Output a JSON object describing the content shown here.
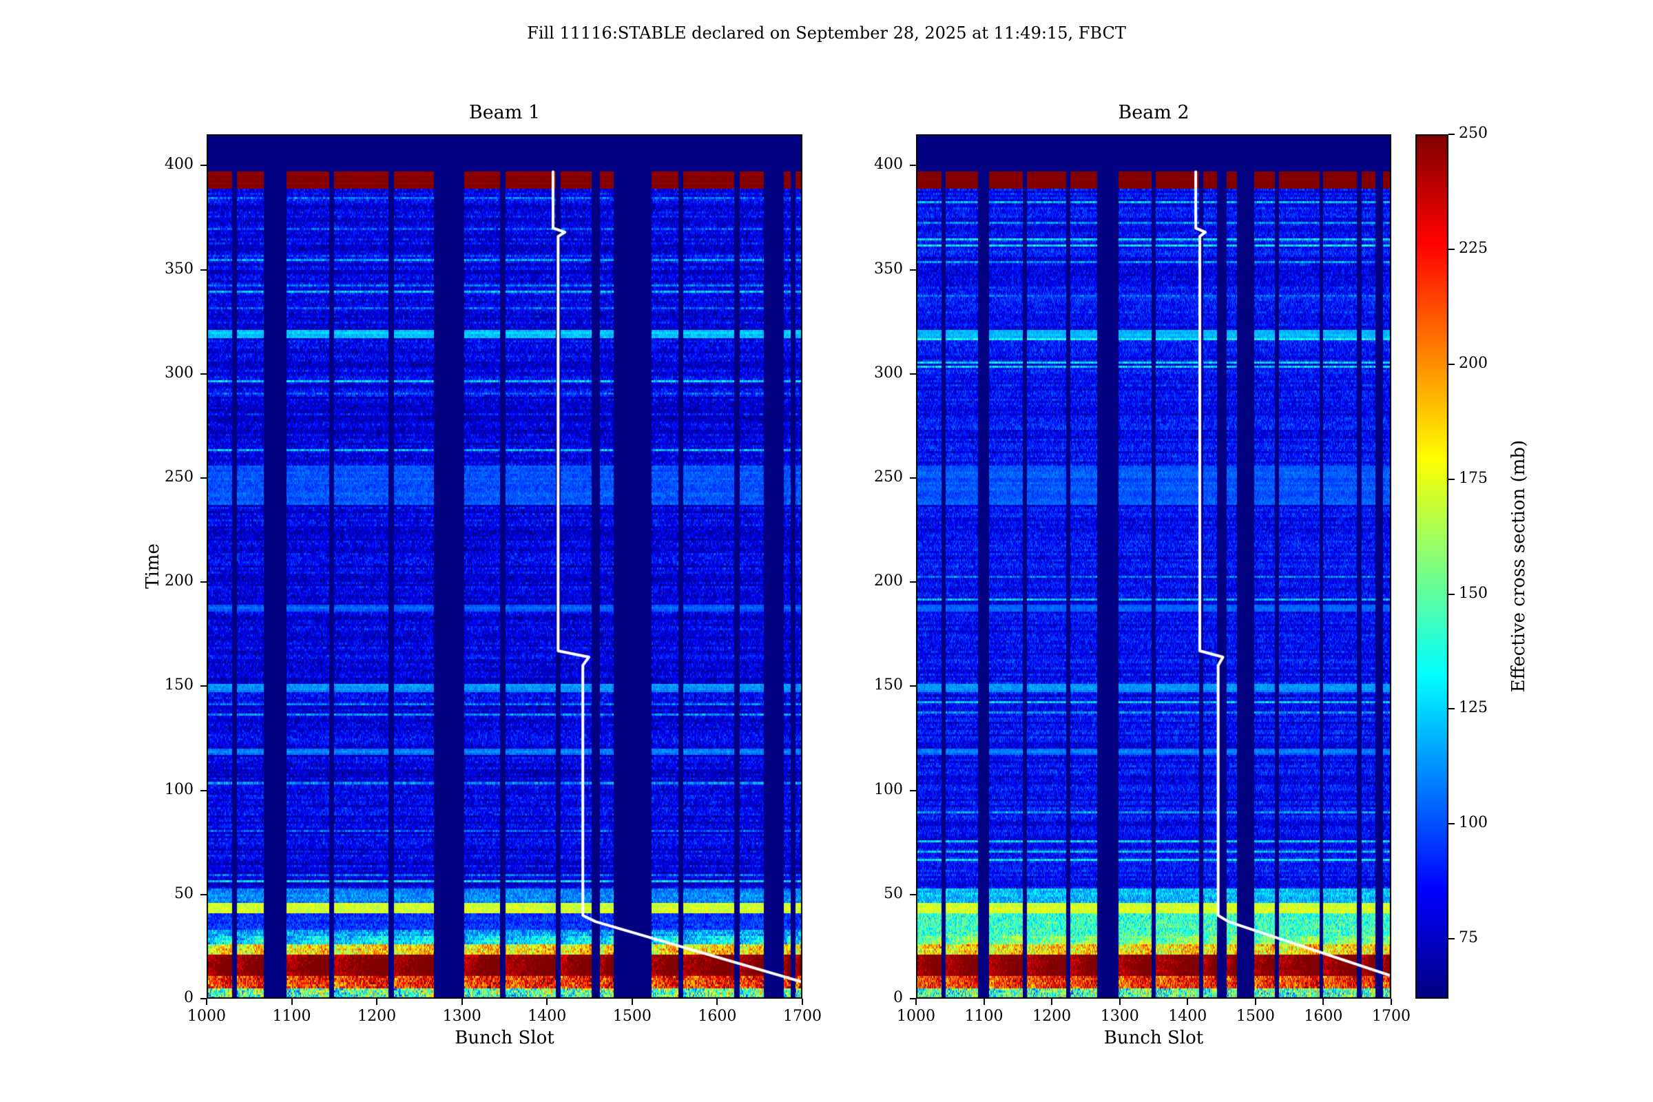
{
  "figure": {
    "suptitle": "Fill 11116:STABLE declared on September 28, 2025 at 11:49:15, FBCT",
    "background": "#ffffff"
  },
  "colorbar": {
    "label": "Effective cross section (mb)",
    "vmin": 62,
    "vmax": 250,
    "ticks": [
      75,
      100,
      125,
      150,
      175,
      200,
      225,
      250
    ],
    "colormap": "jet",
    "min_color": "#000080",
    "max_color": "#800000"
  },
  "heatmap_model": {
    "baseline": 80,
    "cell_noise": 16,
    "row_noise": 16,
    "row_streak_probability": 0.07,
    "row_streak_boost": 30,
    "train_sawtooth_boost": 26,
    "sawtooth_below_time": 30,
    "data_top_time": 397,
    "bands": [
      {
        "t0": 0,
        "t1": 5,
        "value": 135,
        "jitter": 85
      },
      {
        "t0": 5,
        "t1": 11,
        "value": 205,
        "jitter": 60
      },
      {
        "t0": 11,
        "t1": 21,
        "value": 238,
        "jitter": 26
      },
      {
        "t0": 21,
        "t1": 26,
        "value": 170,
        "jitter": 60
      },
      {
        "t0": 26,
        "t1": 33,
        "value": 115,
        "jitter": 40
      },
      {
        "t0": 33,
        "t1": 41,
        "value": 94,
        "jitter": 26
      },
      {
        "t0": 41,
        "t1": 46,
        "value": 172,
        "jitter": 22
      },
      {
        "t0": 46,
        "t1": 53,
        "value": 110,
        "jitter": 26
      },
      {
        "t0": 117,
        "t1": 120,
        "value": 108,
        "jitter": 14
      },
      {
        "t0": 147,
        "t1": 151,
        "value": 113,
        "jitter": 14
      },
      {
        "t0": 186,
        "t1": 189,
        "value": 103,
        "jitter": 12
      },
      {
        "t0": 237,
        "t1": 256,
        "value": 101,
        "jitter": 16
      },
      {
        "t0": 317,
        "t1": 321,
        "value": 121,
        "jitter": 14
      },
      {
        "t0": 389,
        "t1": 397,
        "value": 249,
        "jitter": 3
      }
    ]
  },
  "chart_data": [
    {
      "type": "heatmap",
      "title": "Beam 1",
      "xlabel": "Bunch Slot",
      "ylabel": "Time",
      "xlim": [
        1000,
        1700
      ],
      "ylim": [
        0,
        415
      ],
      "xticks": [
        1000,
        1100,
        1200,
        1300,
        1400,
        1500,
        1600,
        1700
      ],
      "yticks": [
        0,
        50,
        100,
        150,
        200,
        250,
        300,
        350,
        400
      ],
      "seed": 11116,
      "baseline": 80,
      "trains": [
        [
          1000,
          1029
        ],
        [
          1036,
          1066
        ],
        [
          1094,
          1143
        ],
        [
          1150,
          1213
        ],
        [
          1220,
          1266
        ],
        [
          1303,
          1344
        ],
        [
          1351,
          1409
        ],
        [
          1416,
          1451
        ],
        [
          1462,
          1477
        ],
        [
          1523,
          1553
        ],
        [
          1560,
          1619
        ],
        [
          1626,
          1654
        ],
        [
          1678,
          1685
        ],
        [
          1692,
          1700
        ]
      ],
      "white_line": [
        [
          1407,
          397
        ],
        [
          1407,
          370
        ],
        [
          1421,
          368
        ],
        [
          1413,
          366
        ],
        [
          1413,
          167
        ],
        [
          1449,
          164
        ],
        [
          1442,
          160
        ],
        [
          1442,
          40
        ],
        [
          1457,
          37
        ],
        [
          1700,
          8
        ]
      ]
    },
    {
      "type": "heatmap",
      "title": "Beam 2",
      "xlabel": "Bunch Slot",
      "ylabel": "",
      "xlim": [
        1000,
        1700
      ],
      "ylim": [
        0,
        415
      ],
      "xticks": [
        1000,
        1100,
        1200,
        1300,
        1400,
        1500,
        1600,
        1700
      ],
      "yticks": [
        0,
        50,
        100,
        150,
        200,
        250,
        300,
        350,
        400
      ],
      "seed": 22232,
      "baseline": 85,
      "trains": [
        [
          1000,
          1037
        ],
        [
          1044,
          1090
        ],
        [
          1108,
          1156
        ],
        [
          1163,
          1220
        ],
        [
          1227,
          1266
        ],
        [
          1298,
          1346
        ],
        [
          1353,
          1416
        ],
        [
          1423,
          1442
        ],
        [
          1458,
          1472
        ],
        [
          1498,
          1528
        ],
        [
          1535,
          1593
        ],
        [
          1600,
          1648
        ],
        [
          1656,
          1676
        ],
        [
          1688,
          1700
        ]
      ],
      "extra_bands": [
        {
          "t0": 26,
          "t1": 41,
          "value": 142,
          "jitter": 46
        },
        {
          "t0": 46,
          "t1": 53,
          "value": 120,
          "jitter": 34
        }
      ],
      "white_line": [
        [
          1412,
          397
        ],
        [
          1412,
          370
        ],
        [
          1426,
          368
        ],
        [
          1418,
          366
        ],
        [
          1418,
          167
        ],
        [
          1452,
          164
        ],
        [
          1445,
          160
        ],
        [
          1445,
          40
        ],
        [
          1460,
          37
        ],
        [
          1700,
          11
        ]
      ]
    }
  ]
}
